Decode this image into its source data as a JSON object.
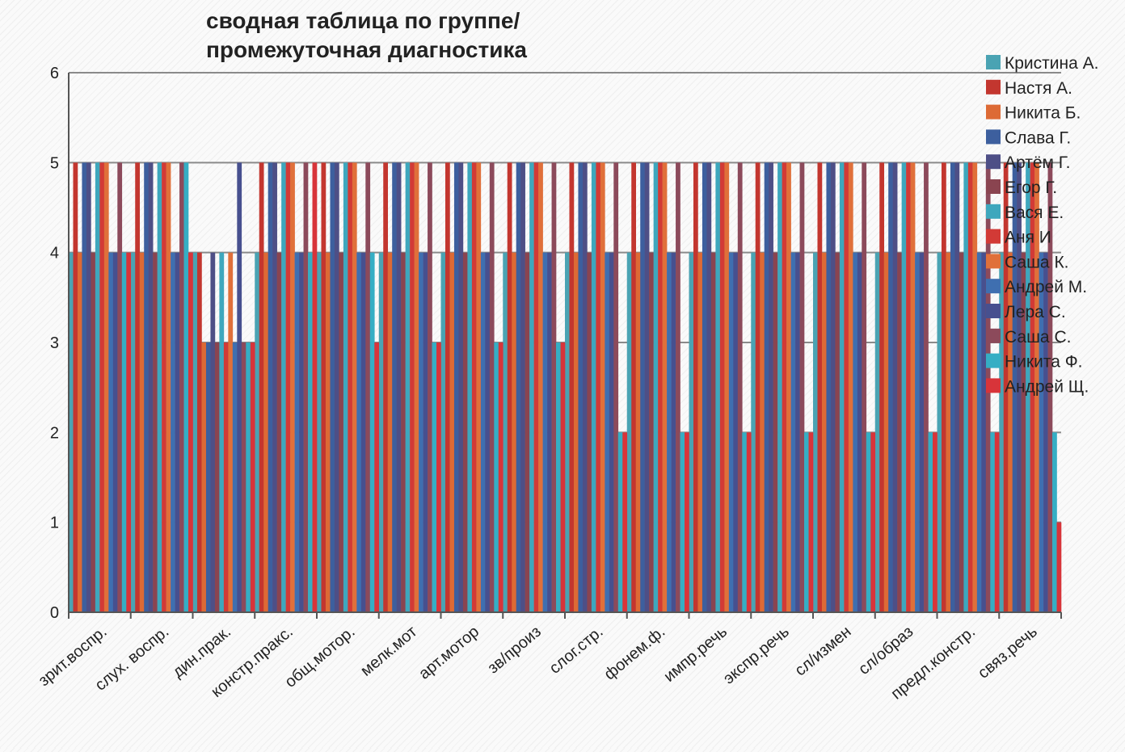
{
  "chart_data": {
    "type": "bar",
    "title": "сводная таблица по группе/\nпромежуточная диагностика",
    "xlabel": "",
    "ylabel": "",
    "ylim": [
      0,
      6
    ],
    "yticks": [
      0,
      1,
      2,
      3,
      4,
      5,
      6
    ],
    "grid": true,
    "legend_position": "right",
    "categories": [
      "зрит.воспр.",
      "слух. воспр.",
      "дин.прак.",
      "констр.пракс.",
      "общ.мотор.",
      "мелк.мот",
      "арт.мотор",
      "зв/произ",
      "слог.стр.",
      "фонем.ф.",
      "импр.речь",
      "экспр.речь",
      "сл/измен",
      "сл/образ",
      "предл.констр.",
      "связ.речь"
    ],
    "series": [
      {
        "name": "Кристина А.",
        "color": "#4aa3b3",
        "values": [
          4,
          4,
          4,
          4,
          4,
          4,
          4,
          4,
          4,
          4,
          4,
          4,
          4,
          4,
          4,
          4
        ]
      },
      {
        "name": "Настя А.",
        "color": "#c3362f",
        "values": [
          5,
          5,
          4,
          5,
          5,
          5,
          5,
          5,
          5,
          5,
          5,
          5,
          5,
          5,
          5,
          5
        ]
      },
      {
        "name": "Никита Б.",
        "color": "#dd6a35",
        "values": [
          4,
          4,
          3,
          4,
          4,
          4,
          4,
          4,
          4,
          4,
          4,
          4,
          4,
          4,
          4,
          4
        ]
      },
      {
        "name": "Слава Г.",
        "color": "#3d5f9e",
        "values": [
          5,
          5,
          3,
          5,
          5,
          5,
          5,
          5,
          5,
          5,
          5,
          5,
          5,
          5,
          5,
          5
        ]
      },
      {
        "name": "Артём Г.",
        "color": "#4e4f86",
        "values": [
          5,
          5,
          4,
          5,
          5,
          5,
          5,
          5,
          5,
          5,
          5,
          5,
          5,
          5,
          5,
          5
        ]
      },
      {
        "name": "Егор Г.",
        "color": "#8a4450",
        "values": [
          4,
          4,
          3,
          4,
          4,
          4,
          4,
          4,
          4,
          4,
          4,
          4,
          4,
          4,
          4,
          4
        ]
      },
      {
        "name": "Вася Е.",
        "color": "#3ea7bd",
        "values": [
          5,
          5,
          4,
          5,
          5,
          5,
          5,
          5,
          5,
          5,
          5,
          5,
          5,
          5,
          5,
          5
        ]
      },
      {
        "name": "Аня И",
        "color": "#d23a36",
        "values": [
          5,
          5,
          3,
          5,
          5,
          5,
          5,
          5,
          5,
          5,
          5,
          5,
          5,
          5,
          5,
          5
        ]
      },
      {
        "name": "Саша К.",
        "color": "#e0703a",
        "values": [
          5,
          5,
          4,
          5,
          5,
          5,
          5,
          5,
          5,
          5,
          5,
          5,
          5,
          5,
          5,
          5
        ]
      },
      {
        "name": "Андрей М.",
        "color": "#3f6fb0",
        "values": [
          4,
          4,
          3,
          4,
          4,
          4,
          4,
          4,
          4,
          4,
          4,
          4,
          4,
          4,
          4,
          4
        ]
      },
      {
        "name": "Лера С.",
        "color": "#47508f",
        "values": [
          4,
          4,
          5,
          4,
          4,
          4,
          4,
          4,
          4,
          4,
          4,
          4,
          4,
          4,
          4,
          4
        ]
      },
      {
        "name": "Саша С.",
        "color": "#8c4a5b",
        "values": [
          5,
          5,
          3,
          5,
          5,
          5,
          5,
          5,
          5,
          5,
          5,
          5,
          5,
          5,
          5,
          5
        ]
      },
      {
        "name": "Никита Ф.",
        "color": "#35aec4",
        "values": [
          4,
          5,
          3,
          4,
          4,
          3,
          3,
          3,
          2,
          2,
          2,
          2,
          2,
          2,
          2,
          2
        ]
      },
      {
        "name": "Андрей Щ.",
        "color": "#d8343a",
        "values": [
          4,
          4,
          3,
          5,
          3,
          3,
          3,
          3,
          2,
          2,
          2,
          2,
          2,
          2,
          2,
          1
        ]
      }
    ]
  }
}
